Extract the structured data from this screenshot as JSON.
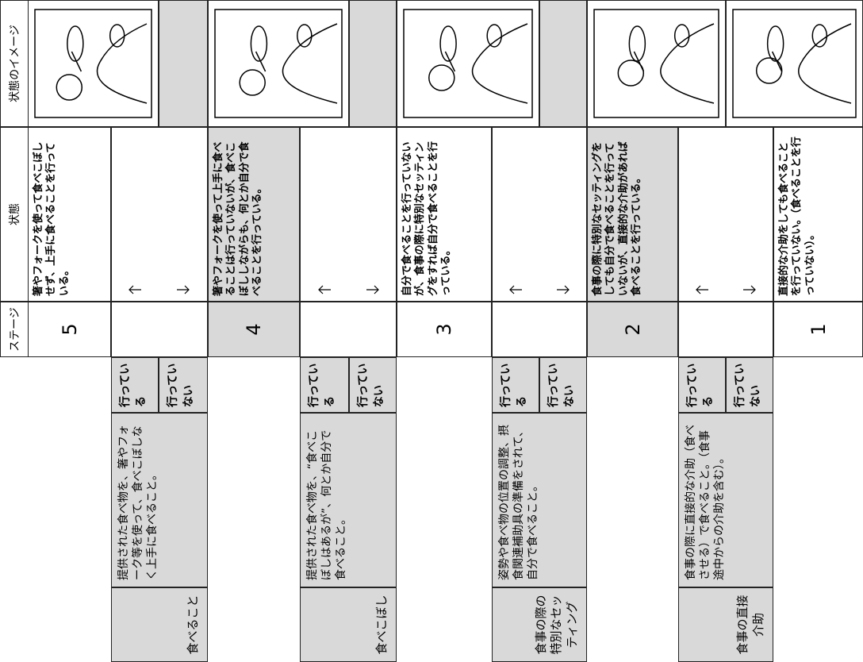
{
  "header": {
    "stage": "ステージ",
    "state": "状態",
    "image": "状態のイメージ"
  },
  "stages": [
    {
      "stage": 5,
      "state": "箸やフォークを使って食べこぼしせず、上手に食べることを行っている。"
    },
    {
      "stage": 4,
      "state": "箸やフォークを使って上手に食べることは行っていないが、食べこぼししながらも、何とか自分で食べることを行っている。"
    },
    {
      "stage": 3,
      "state": "自分で食べることを行っていないが、食事の際に特別なセッティングをすれば自分で食べることを行っている。"
    },
    {
      "stage": 2,
      "state": "食事の際に特別なセッティングをしても自分で食べることを行っていないが、直接的な介助があれば食べることを行っている。"
    },
    {
      "stage": 1,
      "state": "直接的な介助をしても食べることを行っていない。（食べることを行っていない）。"
    }
  ],
  "questions": [
    {
      "category": "食べること",
      "description": "提供された食べ物を、箸やフォーク等を使って、食べこぼしなく上手に食べること。",
      "yes": "行っている",
      "no": "行っていない"
    },
    {
      "category": "食べこぼし",
      "description": "提供された食べ物を、“食べこぼしはあるが”、何とか自分で食べること。",
      "yes": "行っている",
      "no": "行っていない"
    },
    {
      "category": "食事の際の特別なセッティング",
      "description": "姿勢や食べ物の位置の調整、摂食関連補助具の準備をされて、自分で食べること。",
      "yes": "行っている",
      "no": "行っていない"
    },
    {
      "category": "食事の直接介助",
      "description": "食事の際に直接的な介助（食べさせる）で食べること。（食事途中からの介助を含む）。",
      "yes": "行っている",
      "no": "行っていない"
    }
  ]
}
